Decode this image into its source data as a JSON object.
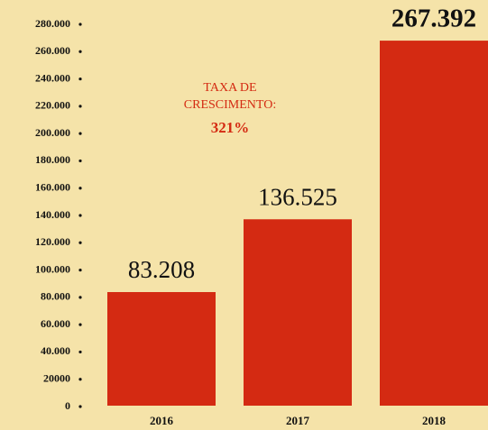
{
  "chart_data": {
    "type": "bar",
    "categories": [
      "2016",
      "2017",
      "2018"
    ],
    "values": [
      83208,
      136525,
      267392
    ],
    "value_labels": [
      "83.208",
      "136.525",
      "267.392"
    ],
    "color": "#d42a12",
    "annotation": {
      "text": "TAXA DE CRESCIMENTO:",
      "value": "321%"
    },
    "ylim": [
      0,
      280000
    ],
    "yticks": [
      0,
      20000,
      {
        "value": 40000,
        "label": "40.000"
      },
      {
        "value": 60000,
        "label": "60.000"
      },
      {
        "value": 80000,
        "label": "80.000"
      },
      {
        "value": 100000,
        "label": "100.000"
      },
      {
        "value": 120000,
        "label": "120.000"
      },
      {
        "value": 140000,
        "label": "140.000"
      },
      {
        "value": 160000,
        "label": "160.000"
      },
      {
        "value": 180000,
        "label": "180.000"
      },
      {
        "value": 200000,
        "label": "200.000"
      },
      {
        "value": 220000,
        "label": "220.000"
      },
      {
        "value": 240000,
        "label": "240.000"
      },
      {
        "value": 260000,
        "label": "260.000"
      },
      {
        "value": 280000,
        "label": "280.000"
      }
    ]
  }
}
